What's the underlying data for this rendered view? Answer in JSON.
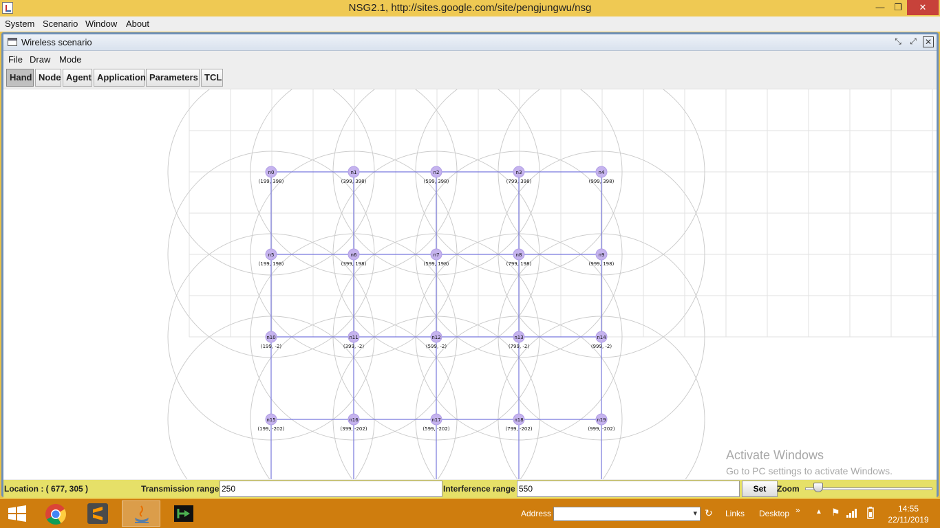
{
  "window": {
    "title": "NSG2.1, http://sites.google.com/site/pengjungwu/nsg",
    "min": "—",
    "max": "❐",
    "close": "✕"
  },
  "main_menu": [
    "System",
    "Scenario",
    "Window",
    "About"
  ],
  "frame": {
    "title": "Wireless scenario",
    "menu": [
      "File",
      "Draw",
      "Mode"
    ],
    "toolbar": [
      "Hand",
      "Node",
      "Agent",
      "Application",
      "Parameters",
      "TCL"
    ],
    "active_tool": "Hand"
  },
  "nodes": [
    {
      "name": "n0",
      "coord": "(199, 398)"
    },
    {
      "name": "n1",
      "coord": "(399, 398)"
    },
    {
      "name": "n2",
      "coord": "(599, 398)"
    },
    {
      "name": "n3",
      "coord": "(799, 398)"
    },
    {
      "name": "n4",
      "coord": "(999, 398)"
    },
    {
      "name": "n5",
      "coord": "(199, 198)"
    },
    {
      "name": "n6",
      "coord": "(399, 198)"
    },
    {
      "name": "n7",
      "coord": "(599, 198)"
    },
    {
      "name": "n8",
      "coord": "(799, 198)"
    },
    {
      "name": "n9",
      "coord": "(999, 198)"
    },
    {
      "name": "n10",
      "coord": "(199, -2)"
    },
    {
      "name": "n11",
      "coord": "(399, -2)"
    },
    {
      "name": "n12",
      "coord": "(599, -2)"
    },
    {
      "name": "n13",
      "coord": "(799, -2)"
    },
    {
      "name": "n14",
      "coord": "(999, -2)"
    },
    {
      "name": "n15",
      "coord": "(199, -202)"
    },
    {
      "name": "n16",
      "coord": "(399, -202)"
    },
    {
      "name": "n17",
      "coord": "(599, -202)"
    },
    {
      "name": "n18",
      "coord": "(799, -202)"
    },
    {
      "name": "n19",
      "coord": "(999, -202)"
    }
  ],
  "status": {
    "location": "Location : ( 677, 305 )",
    "tx_label": "Transmission range",
    "tx_value": "250",
    "if_label": "Interference range",
    "if_value": "550",
    "set": "Set",
    "zoom": "Zoom"
  },
  "watermark": {
    "line1": "Activate Windows",
    "line2": "Go to PC settings to activate Windows."
  },
  "taskbar": {
    "address": "Address",
    "links": "Links",
    "desktop": "Desktop",
    "time": "14:55",
    "date": "22/11/2019"
  },
  "colors": {
    "node": "#c5b3ee",
    "link": "#7777dd",
    "range": "#cccccc",
    "grid": "#e2e2e2"
  }
}
